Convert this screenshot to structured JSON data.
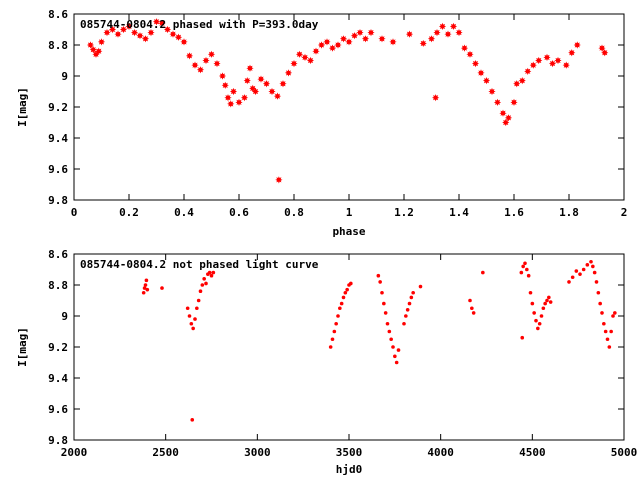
{
  "chart_data": [
    {
      "type": "scatter",
      "title": "085744-0804.2 phased with P=393.0day",
      "xlabel": "phase",
      "ylabel": "I[mag]",
      "xlim": [
        0,
        2
      ],
      "ylim": [
        8.6,
        9.8
      ],
      "y_inverted": true,
      "grid": false,
      "marker": "star",
      "marker_color": "#ff0000",
      "x_ticks": [
        0,
        0.2,
        0.4,
        0.6,
        0.8,
        1,
        1.2,
        1.4,
        1.6,
        1.8,
        2
      ],
      "x_tick_labels": [
        "0",
        "0.2",
        "0.4",
        "0.6",
        "0.8",
        "1",
        "1.2",
        "1.4",
        "1.6",
        "1.8",
        "2"
      ],
      "y_ticks": [
        8.6,
        8.8,
        9,
        9.2,
        9.4,
        9.6,
        9.8
      ],
      "y_tick_labels": [
        "8.6",
        "8.8",
        "9",
        "9.2",
        "9.4",
        "9.6",
        "9.8"
      ],
      "points": [
        [
          0.06,
          8.8
        ],
        [
          0.07,
          8.83
        ],
        [
          0.08,
          8.86
        ],
        [
          0.09,
          8.84
        ],
        [
          0.1,
          8.78
        ],
        [
          0.12,
          8.72
        ],
        [
          0.14,
          8.7
        ],
        [
          0.16,
          8.73
        ],
        [
          0.18,
          8.7
        ],
        [
          0.2,
          8.68
        ],
        [
          0.22,
          8.72
        ],
        [
          0.24,
          8.74
        ],
        [
          0.26,
          8.76
        ],
        [
          0.28,
          8.72
        ],
        [
          0.3,
          8.65
        ],
        [
          0.32,
          8.66
        ],
        [
          0.34,
          8.7
        ],
        [
          0.36,
          8.73
        ],
        [
          0.38,
          8.75
        ],
        [
          0.4,
          8.78
        ],
        [
          0.42,
          8.87
        ],
        [
          0.44,
          8.93
        ],
        [
          0.46,
          8.96
        ],
        [
          0.48,
          8.9
        ],
        [
          0.5,
          8.86
        ],
        [
          0.52,
          8.92
        ],
        [
          0.54,
          9.0
        ],
        [
          0.55,
          9.06
        ],
        [
          0.56,
          9.14
        ],
        [
          0.57,
          9.18
        ],
        [
          0.58,
          9.1
        ],
        [
          0.6,
          9.17
        ],
        [
          0.62,
          9.14
        ],
        [
          0.63,
          9.03
        ],
        [
          0.64,
          8.95
        ],
        [
          0.65,
          9.08
        ],
        [
          0.66,
          9.1
        ],
        [
          0.68,
          9.02
        ],
        [
          0.7,
          9.05
        ],
        [
          0.72,
          9.1
        ],
        [
          0.74,
          9.13
        ],
        [
          0.745,
          9.67
        ],
        [
          0.76,
          9.05
        ],
        [
          0.78,
          8.98
        ],
        [
          0.8,
          8.92
        ],
        [
          0.82,
          8.86
        ],
        [
          0.84,
          8.88
        ],
        [
          0.86,
          8.9
        ],
        [
          0.88,
          8.84
        ],
        [
          0.9,
          8.8
        ],
        [
          0.92,
          8.78
        ],
        [
          0.94,
          8.82
        ],
        [
          0.96,
          8.8
        ],
        [
          0.98,
          8.76
        ],
        [
          1.0,
          8.78
        ],
        [
          1.02,
          8.74
        ],
        [
          1.04,
          8.72
        ],
        [
          1.06,
          8.76
        ],
        [
          1.08,
          8.72
        ],
        [
          1.12,
          8.76
        ],
        [
          1.16,
          8.78
        ],
        [
          1.22,
          8.73
        ],
        [
          1.27,
          8.79
        ],
        [
          1.3,
          8.76
        ],
        [
          1.32,
          8.72
        ],
        [
          1.34,
          8.68
        ],
        [
          1.36,
          8.73
        ],
        [
          1.38,
          8.68
        ],
        [
          1.4,
          8.72
        ],
        [
          1.42,
          8.82
        ],
        [
          1.44,
          8.86
        ],
        [
          1.46,
          8.92
        ],
        [
          1.48,
          8.98
        ],
        [
          1.5,
          9.03
        ],
        [
          1.52,
          9.1
        ],
        [
          1.54,
          9.17
        ],
        [
          1.56,
          9.24
        ],
        [
          1.57,
          9.3
        ],
        [
          1.58,
          9.27
        ],
        [
          1.6,
          9.17
        ],
        [
          1.61,
          9.05
        ],
        [
          1.63,
          9.03
        ],
        [
          1.65,
          8.97
        ],
        [
          1.67,
          8.93
        ],
        [
          1.69,
          8.9
        ],
        [
          1.72,
          8.88
        ],
        [
          1.74,
          8.92
        ],
        [
          1.76,
          8.9
        ],
        [
          1.79,
          8.93
        ],
        [
          1.81,
          8.85
        ],
        [
          1.83,
          8.8
        ],
        [
          1.92,
          8.82
        ],
        [
          1.93,
          8.85
        ],
        [
          1.315,
          9.14
        ]
      ]
    },
    {
      "type": "scatter",
      "title": "085744-0804.2 not phased light curve",
      "xlabel": "hjd0",
      "ylabel": "I[mag]",
      "xlim": [
        2000,
        5000
      ],
      "ylim": [
        8.6,
        9.8
      ],
      "y_inverted": true,
      "grid": false,
      "marker": "dot",
      "marker_color": "#ff0000",
      "x_ticks": [
        2000,
        2500,
        3000,
        3500,
        4000,
        4500,
        5000
      ],
      "x_tick_labels": [
        "2000",
        "2500",
        "3000",
        "3500",
        "4000",
        "4500",
        "5000"
      ],
      "y_ticks": [
        8.6,
        8.8,
        9,
        9.2,
        9.4,
        9.6,
        9.8
      ],
      "y_tick_labels": [
        "8.6",
        "8.8",
        "9",
        "9.2",
        "9.4",
        "9.6",
        "9.8"
      ],
      "points": [
        [
          2380,
          8.85
        ],
        [
          2385,
          8.82
        ],
        [
          2390,
          8.8
        ],
        [
          2395,
          8.77
        ],
        [
          2400,
          8.83
        ],
        [
          2480,
          8.82
        ],
        [
          2620,
          8.95
        ],
        [
          2630,
          9.0
        ],
        [
          2640,
          9.05
        ],
        [
          2650,
          9.08
        ],
        [
          2660,
          9.02
        ],
        [
          2670,
          8.95
        ],
        [
          2680,
          8.9
        ],
        [
          2690,
          8.84
        ],
        [
          2700,
          8.8
        ],
        [
          2710,
          8.76
        ],
        [
          2720,
          8.79
        ],
        [
          2730,
          8.73
        ],
        [
          2740,
          8.72
        ],
        [
          2750,
          8.74
        ],
        [
          2760,
          8.72
        ],
        [
          2645,
          9.67
        ],
        [
          3400,
          9.2
        ],
        [
          3410,
          9.15
        ],
        [
          3420,
          9.1
        ],
        [
          3430,
          9.05
        ],
        [
          3440,
          9.0
        ],
        [
          3450,
          8.95
        ],
        [
          3460,
          8.92
        ],
        [
          3470,
          8.88
        ],
        [
          3480,
          8.85
        ],
        [
          3490,
          8.83
        ],
        [
          3500,
          8.8
        ],
        [
          3510,
          8.79
        ],
        [
          3660,
          8.74
        ],
        [
          3670,
          8.78
        ],
        [
          3680,
          8.85
        ],
        [
          3690,
          8.92
        ],
        [
          3700,
          8.98
        ],
        [
          3710,
          9.05
        ],
        [
          3720,
          9.1
        ],
        [
          3730,
          9.15
        ],
        [
          3740,
          9.2
        ],
        [
          3750,
          9.26
        ],
        [
          3760,
          9.3
        ],
        [
          3770,
          9.22
        ],
        [
          3800,
          9.05
        ],
        [
          3810,
          9.0
        ],
        [
          3820,
          8.96
        ],
        [
          3830,
          8.92
        ],
        [
          3840,
          8.88
        ],
        [
          3850,
          8.85
        ],
        [
          3890,
          8.81
        ],
        [
          4160,
          8.9
        ],
        [
          4170,
          8.95
        ],
        [
          4180,
          8.98
        ],
        [
          4230,
          8.72
        ],
        [
          4440,
          8.72
        ],
        [
          4450,
          8.68
        ],
        [
          4460,
          8.66
        ],
        [
          4470,
          8.7
        ],
        [
          4480,
          8.74
        ],
        [
          4490,
          8.85
        ],
        [
          4500,
          8.92
        ],
        [
          4510,
          8.98
        ],
        [
          4520,
          9.03
        ],
        [
          4530,
          9.08
        ],
        [
          4540,
          9.05
        ],
        [
          4550,
          9.0
        ],
        [
          4560,
          8.95
        ],
        [
          4570,
          8.92
        ],
        [
          4580,
          8.9
        ],
        [
          4590,
          8.88
        ],
        [
          4600,
          8.91
        ],
        [
          4700,
          8.78
        ],
        [
          4720,
          8.75
        ],
        [
          4740,
          8.71
        ],
        [
          4760,
          8.73
        ],
        [
          4780,
          8.7
        ],
        [
          4800,
          8.67
        ],
        [
          4820,
          8.65
        ],
        [
          4830,
          8.68
        ],
        [
          4840,
          8.72
        ],
        [
          4850,
          8.78
        ],
        [
          4860,
          8.85
        ],
        [
          4870,
          8.92
        ],
        [
          4880,
          8.98
        ],
        [
          4890,
          9.05
        ],
        [
          4900,
          9.1
        ],
        [
          4910,
          9.15
        ],
        [
          4920,
          9.2
        ],
        [
          4930,
          9.1
        ],
        [
          4940,
          9.0
        ],
        [
          4950,
          8.98
        ],
        [
          4445,
          9.14
        ]
      ]
    }
  ]
}
